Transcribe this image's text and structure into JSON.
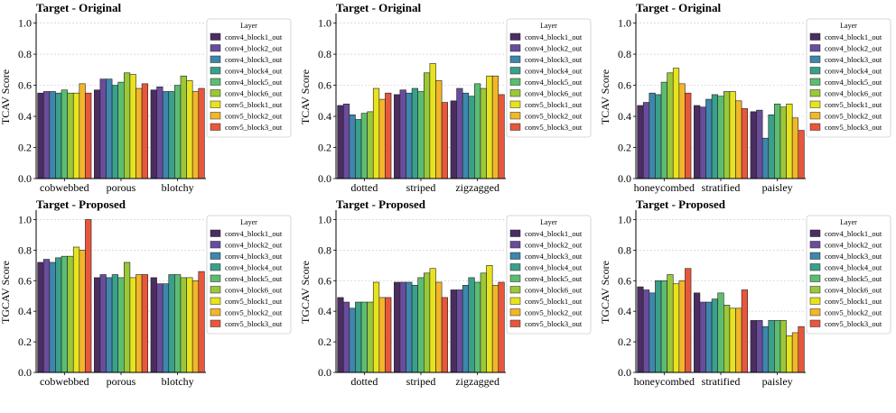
{
  "layers": [
    "conv4_block1_out",
    "conv4_block2_out",
    "conv4_block3_out",
    "conv4_block4_out",
    "conv4_block5_out",
    "conv4_block6_out",
    "conv5_block1_out",
    "conv5_block2_out",
    "conv5_block3_out"
  ],
  "colors": [
    "#4b2d62",
    "#6a4c9c",
    "#3e86ad",
    "#3aa08a",
    "#5cbd72",
    "#9ac83a",
    "#e8e31f",
    "#f2b62a",
    "#e8573c"
  ],
  "legend_title": "Layer",
  "caption": "",
  "chart_data": [
    {
      "type": "bar",
      "title": "Target - Original",
      "ylabel": "TCAV Score",
      "ylim": [
        0,
        1.05
      ],
      "categories": [
        "cobwebbed",
        "porous",
        "blotchy"
      ],
      "values": [
        [
          0.55,
          0.56,
          0.56,
          0.55,
          0.57,
          0.55,
          0.55,
          0.61,
          0.55
        ],
        [
          0.57,
          0.64,
          0.64,
          0.6,
          0.62,
          0.68,
          0.67,
          0.58,
          0.61
        ],
        [
          0.57,
          0.59,
          0.56,
          0.56,
          0.6,
          0.66,
          0.63,
          0.56,
          0.58
        ]
      ]
    },
    {
      "type": "bar",
      "title": "Target - Original",
      "ylabel": "TCAV Score",
      "ylim": [
        0,
        1.05
      ],
      "categories": [
        "dotted",
        "striped",
        "zigzagged"
      ],
      "values": [
        [
          0.47,
          0.48,
          0.41,
          0.38,
          0.42,
          0.43,
          0.58,
          0.51,
          0.55
        ],
        [
          0.54,
          0.57,
          0.55,
          0.58,
          0.56,
          0.68,
          0.74,
          0.63,
          0.49
        ],
        [
          0.5,
          0.58,
          0.55,
          0.53,
          0.61,
          0.58,
          0.66,
          0.66,
          0.54
        ]
      ]
    },
    {
      "type": "bar",
      "title": "Target - Original",
      "ylabel": "TCAV Score",
      "ylim": [
        0,
        1.05
      ],
      "categories": [
        "honeycombed",
        "stratified",
        "paisley"
      ],
      "values": [
        [
          0.47,
          0.49,
          0.55,
          0.54,
          0.62,
          0.68,
          0.71,
          0.61,
          0.55
        ],
        [
          0.47,
          0.46,
          0.51,
          0.54,
          0.53,
          0.56,
          0.56,
          0.5,
          0.45
        ],
        [
          0.43,
          0.44,
          0.26,
          0.41,
          0.48,
          0.46,
          0.48,
          0.39,
          0.31
        ]
      ]
    },
    {
      "type": "bar",
      "title": "Target - Proposed",
      "ylabel": "TGCAV Score",
      "ylim": [
        0,
        1.05
      ],
      "categories": [
        "cobwebbed",
        "porous",
        "blotchy"
      ],
      "values": [
        [
          0.72,
          0.74,
          0.72,
          0.75,
          0.76,
          0.76,
          0.82,
          0.8,
          1.0
        ],
        [
          0.62,
          0.64,
          0.62,
          0.64,
          0.62,
          0.72,
          0.62,
          0.64,
          0.64
        ],
        [
          0.62,
          0.58,
          0.58,
          0.64,
          0.64,
          0.62,
          0.62,
          0.6,
          0.66
        ]
      ]
    },
    {
      "type": "bar",
      "title": "Target - Proposed",
      "ylabel": "TGCAV Score",
      "ylim": [
        0,
        1.05
      ],
      "categories": [
        "dotted",
        "striped",
        "zigzagged"
      ],
      "values": [
        [
          0.49,
          0.46,
          0.42,
          0.46,
          0.46,
          0.46,
          0.59,
          0.49,
          0.49
        ],
        [
          0.59,
          0.59,
          0.59,
          0.57,
          0.62,
          0.65,
          0.68,
          0.59,
          0.49
        ],
        [
          0.54,
          0.54,
          0.57,
          0.62,
          0.59,
          0.65,
          0.7,
          0.57,
          0.59
        ]
      ]
    },
    {
      "type": "bar",
      "title": "Target - Proposed",
      "ylabel": "TGCAV Score",
      "ylim": [
        0,
        1.05
      ],
      "categories": [
        "honeycombed",
        "stratified",
        "paisley"
      ],
      "values": [
        [
          0.56,
          0.54,
          0.52,
          0.6,
          0.6,
          0.64,
          0.58,
          0.6,
          0.68
        ],
        [
          0.52,
          0.46,
          0.46,
          0.48,
          0.52,
          0.44,
          0.42,
          0.42,
          0.54
        ],
        [
          0.34,
          0.34,
          0.3,
          0.34,
          0.34,
          0.34,
          0.24,
          0.26,
          0.3
        ]
      ]
    }
  ]
}
